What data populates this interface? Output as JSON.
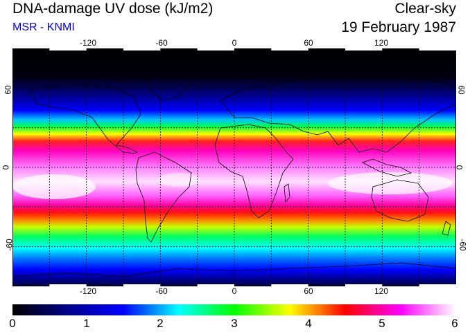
{
  "header": {
    "title": "DNA-damage UV dose (kJ/m2)",
    "subtitle": "MSR - KNMI",
    "condition": "Clear-sky",
    "date": "19 February 1987"
  },
  "map": {
    "projection": "equirectangular",
    "lon_range": [
      -180,
      180
    ],
    "lat_range": [
      -90,
      90
    ],
    "grid_spacing_deg": 30,
    "lon_tick_labels": [
      "-120",
      "-60",
      "0",
      "60",
      "120"
    ],
    "lat_tick_labels": [
      "60",
      "0",
      "-60"
    ],
    "lat_tick_labels_right": [
      "60",
      "0",
      "-60"
    ]
  },
  "colorbar": {
    "min": 0,
    "max": 6,
    "tick_labels": [
      "0",
      "1",
      "2",
      "3",
      "4",
      "5",
      "6"
    ],
    "colors": [
      "#000000",
      "#00008b",
      "#0000ff",
      "#00ffff",
      "#00ff00",
      "#ffff00",
      "#ff0000",
      "#ff00ff",
      "#ffffff"
    ]
  }
}
